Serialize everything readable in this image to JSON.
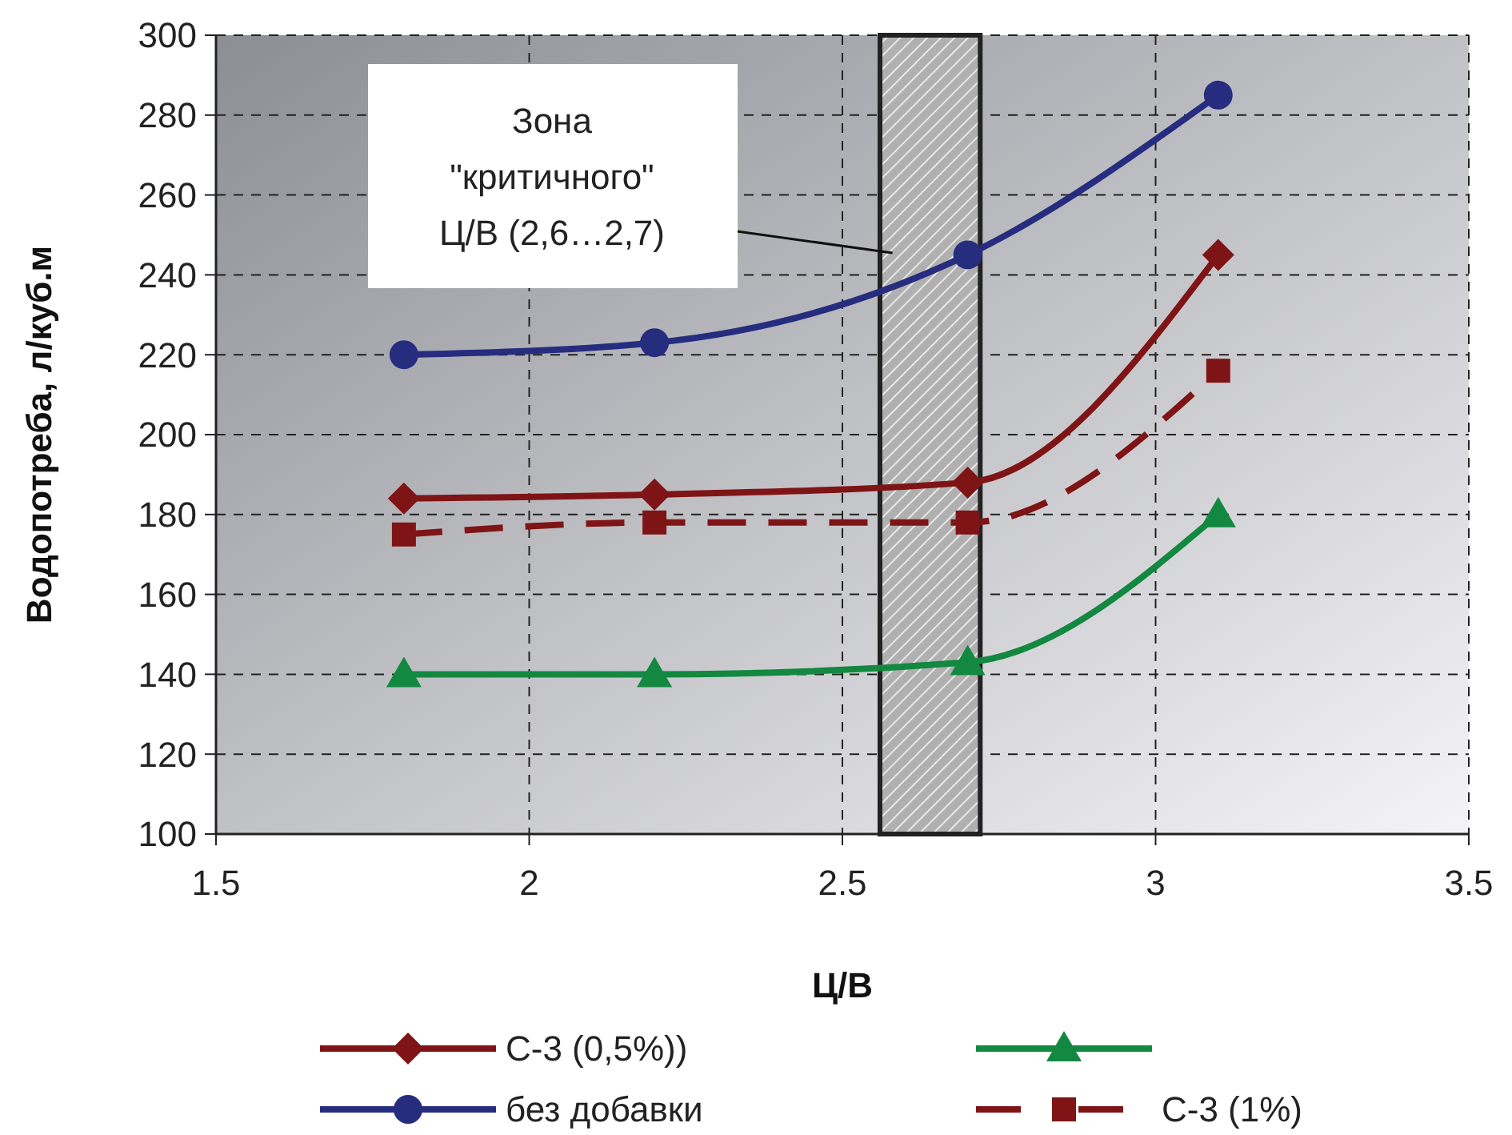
{
  "chart_data": {
    "type": "line",
    "xlabel": "Ц/В",
    "ylabel": "Водопотреба, л/куб.м",
    "xlim": [
      1.5,
      3.5
    ],
    "xticks": [
      1.5,
      2,
      2.5,
      3,
      3.5
    ],
    "ylim": [
      100,
      300
    ],
    "yticks": [
      100,
      120,
      140,
      160,
      180,
      200,
      220,
      240,
      260,
      280,
      300
    ],
    "grid": true,
    "legend": "bottom",
    "bands": [
      {
        "axis": "x",
        "from": 2.56,
        "to": 2.72
      }
    ],
    "annotations": [
      "Зона\n\"критичного\"\nЦ/В (2,6…2,7)"
    ],
    "series": [
      {
        "name": "С-3  (0,5%))",
        "color": "#7f1416",
        "marker": "diamond",
        "line_style": "solid",
        "x": [
          1.8,
          2.2,
          2.7,
          3.1
        ],
        "values": [
          184,
          185,
          188,
          245
        ]
      },
      {
        "color": "#128840",
        "marker": "triangle",
        "line_style": "solid",
        "x": [
          1.8,
          2.2,
          2.7,
          3.1
        ],
        "values": [
          140,
          140,
          143,
          180
        ]
      },
      {
        "name": "без добавки",
        "color": "#262d7f",
        "marker": "circle",
        "line_style": "solid",
        "x": [
          1.8,
          2.2,
          2.7,
          3.1
        ],
        "values": [
          220,
          223,
          245,
          285
        ]
      },
      {
        "name": "С-3 (1%)",
        "color": "#7f1416",
        "marker": "square",
        "line_style": "dashed",
        "x": [
          1.8,
          2.2,
          2.7,
          3.1
        ],
        "values": [
          175,
          178,
          178,
          216
        ]
      }
    ]
  }
}
